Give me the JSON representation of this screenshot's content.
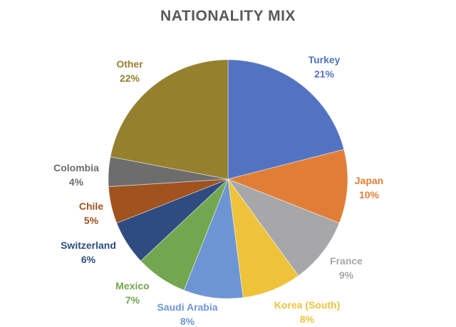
{
  "chart_data": {
    "type": "pie",
    "title": "NATIONALITY MIX",
    "categories": [
      "Turkey",
      "Japan",
      "France",
      "Korea (South)",
      "Saudi Arabia",
      "Mexico",
      "Switzerland",
      "Chile",
      "Colombia",
      "Other"
    ],
    "values": [
      21,
      10,
      9,
      8,
      8,
      7,
      6,
      5,
      4,
      22
    ],
    "value_unit": "%",
    "colors": [
      "#5273c1",
      "#e07e38",
      "#a7a7a9",
      "#eec33b",
      "#6d95d3",
      "#72a64f",
      "#2e4c80",
      "#a0521f",
      "#6d6d6d",
      "#95802e"
    ],
    "title_color": "#595959",
    "background_color": "#ffffff",
    "start_angle_deg": 0,
    "direction": "clockwise",
    "labels_position": "outside",
    "label_format": "category + percent",
    "legend_position": "none"
  }
}
